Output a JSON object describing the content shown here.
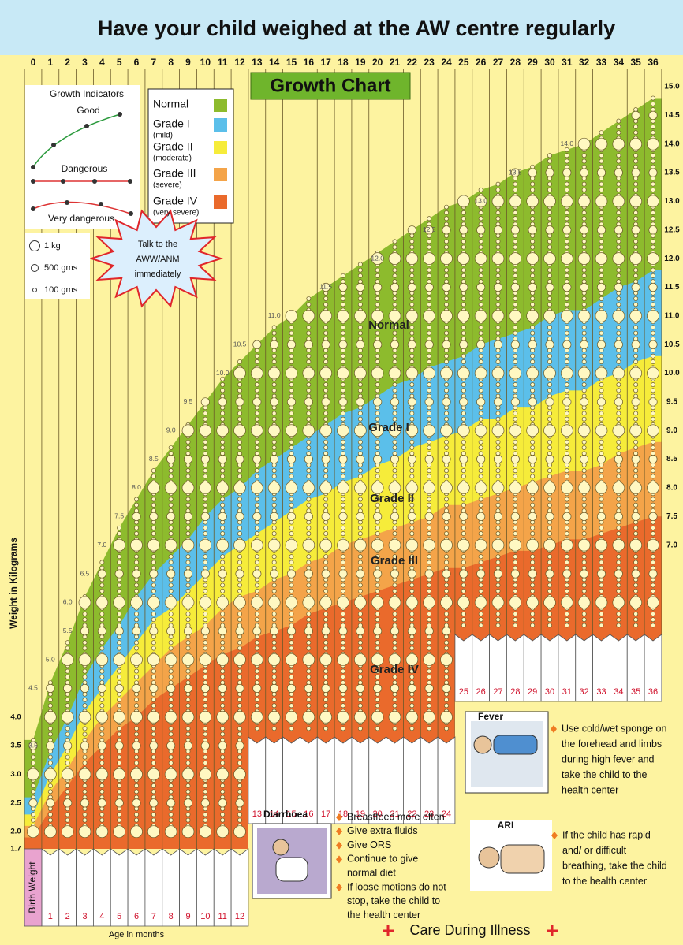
{
  "header": {
    "title": "Have your child weighed at the AW centre regularly"
  },
  "chart_data": {
    "type": "band",
    "title": "Growth Chart",
    "y_label": "Weight in Kilograms",
    "x_label": "Age in months",
    "birth_weight_label": "Birth Weight",
    "x": [
      0,
      1,
      2,
      3,
      4,
      5,
      6,
      7,
      8,
      9,
      10,
      11,
      12,
      13,
      14,
      15,
      16,
      17,
      18,
      19,
      20,
      21,
      22,
      23,
      24,
      25,
      26,
      27,
      28,
      29,
      30,
      31,
      32,
      33,
      34,
      35,
      36
    ],
    "xlim": [
      0,
      36
    ],
    "xticks": [
      0,
      1,
      2,
      3,
      4,
      5,
      6,
      7,
      8,
      9,
      10,
      11,
      12,
      13,
      14,
      15,
      16,
      17,
      18,
      19,
      20,
      21,
      22,
      23,
      24,
      25,
      26,
      27,
      28,
      29,
      30,
      31,
      32,
      33,
      34,
      35,
      36
    ],
    "ylim": [
      1.7,
      15
    ],
    "yticks": [
      1.7,
      {
        "value": 2,
        "label": "2.0"
      },
      2.5,
      {
        "value": 3,
        "label": "3.0"
      },
      3.5,
      {
        "value": 4,
        "label": "4.0"
      }
    ],
    "y2lim": [
      1.7,
      15
    ],
    "y2ticks": [
      {
        "value": 7,
        "label": "7.0"
      },
      7.5,
      {
        "value": 8,
        "label": "8.0"
      },
      8.5,
      {
        "value": 9,
        "label": "9.0"
      },
      9.5,
      {
        "value": 10,
        "label": "10.0"
      },
      10.5,
      {
        "value": 11,
        "label": "11.0"
      },
      11.5,
      {
        "value": 12,
        "label": "12.0"
      },
      12.5,
      {
        "value": 13,
        "label": "13.0"
      },
      13.5,
      {
        "value": 14,
        "label": "14.0"
      },
      14.5,
      {
        "value": 15,
        "label": "15.0"
      }
    ],
    "series": [
      {
        "name": "Normal",
        "color": "#8dbb2d",
        "values": [
          3.6,
          4.6,
          5.3,
          6.1,
          6.7,
          7.3,
          7.8,
          8.3,
          8.7,
          9.1,
          9.5,
          9.9,
          10.2,
          10.5,
          10.8,
          11.0,
          11.3,
          11.5,
          11.7,
          11.9,
          12.1,
          12.3,
          12.5,
          12.7,
          12.9,
          13.0,
          13.2,
          13.3,
          13.5,
          13.6,
          13.8,
          13.9,
          14.0,
          14.2,
          14.4,
          14.6,
          14.8
        ]
      },
      {
        "name": "Grade I",
        "note": "(mild)",
        "color": "#5bbfea",
        "values": [
          2.6,
          3.4,
          4.0,
          4.7,
          5.2,
          5.6,
          6.1,
          6.5,
          6.8,
          7.1,
          7.5,
          7.8,
          8.0,
          8.3,
          8.5,
          8.7,
          8.9,
          9.1,
          9.3,
          9.4,
          9.6,
          9.8,
          9.9,
          10.1,
          10.2,
          10.3,
          10.5,
          10.6,
          10.7,
          10.8,
          11.0,
          11.1,
          11.1,
          11.3,
          11.5,
          11.6,
          11.8
        ]
      },
      {
        "name": "Grade II",
        "note": "(moderate)",
        "color": "#f6ec3a",
        "values": [
          2.3,
          3.0,
          3.5,
          4.1,
          4.5,
          4.9,
          5.3,
          5.7,
          5.9,
          6.2,
          6.5,
          6.8,
          7.0,
          7.2,
          7.4,
          7.6,
          7.8,
          7.9,
          8.1,
          8.2,
          8.4,
          8.5,
          8.7,
          8.8,
          8.9,
          9.0,
          9.2,
          9.2,
          9.4,
          9.4,
          9.6,
          9.7,
          9.7,
          9.9,
          10.0,
          10.2,
          10.3
        ]
      },
      {
        "name": "Grade III",
        "note": "(severe)",
        "color": "#f4a449",
        "values": [
          2.1,
          2.7,
          3.1,
          3.6,
          4.0,
          4.3,
          4.6,
          4.9,
          5.2,
          5.4,
          5.6,
          5.9,
          6.1,
          6.2,
          6.4,
          6.5,
          6.7,
          6.8,
          7.0,
          7.1,
          7.2,
          7.3,
          7.4,
          7.5,
          7.7,
          7.7,
          7.8,
          7.9,
          8.0,
          8.1,
          8.2,
          8.3,
          8.3,
          8.4,
          8.6,
          8.7,
          8.8
        ]
      },
      {
        "name": "Grade IV",
        "note": "(very severe)",
        "color": "#ea6a2c",
        "values": [
          1.9,
          2.4,
          2.8,
          3.2,
          3.5,
          3.8,
          4.0,
          4.3,
          4.5,
          4.7,
          4.9,
          5.1,
          5.2,
          5.4,
          5.5,
          5.6,
          5.8,
          5.9,
          6.0,
          6.1,
          6.2,
          6.3,
          6.4,
          6.5,
          6.6,
          6.6,
          6.7,
          6.8,
          6.9,
          6.9,
          7.0,
          7.1,
          7.1,
          7.2,
          7.3,
          7.4,
          7.5
        ]
      }
    ],
    "curve_labels": [
      {
        "x": 0,
        "value": 3.5
      },
      {
        "x": 0,
        "value": 4.5
      },
      {
        "x": 1,
        "value": 5,
        "label": "5.0"
      },
      {
        "x": 2,
        "value": 5.5
      },
      {
        "x": 2,
        "value": 6,
        "label": "6.0"
      },
      {
        "x": 3,
        "value": 6.5
      },
      {
        "x": 4,
        "value": 7,
        "label": "7.0"
      },
      {
        "x": 5,
        "value": 7.5
      },
      {
        "x": 6,
        "value": 8,
        "label": "8.0"
      },
      {
        "x": 7,
        "value": 8.5
      },
      {
        "x": 8,
        "value": 9,
        "label": "9.0"
      },
      {
        "x": 9,
        "value": 9.5
      },
      {
        "x": 11,
        "value": 10,
        "label": "10.0"
      },
      {
        "x": 12,
        "value": 10.5
      },
      {
        "x": 14,
        "value": 11,
        "label": "11.0"
      },
      {
        "x": 17,
        "value": 11.5
      },
      {
        "x": 20,
        "value": 12,
        "label": "12.0"
      },
      {
        "x": 23,
        "value": 12.5
      },
      {
        "x": 26,
        "value": 13,
        "label": "13.0"
      },
      {
        "x": 28,
        "value": 13.5
      },
      {
        "x": 31,
        "value": 14,
        "label": "14.0"
      }
    ]
  },
  "growth_indicators": {
    "title": "Growth Indicators",
    "labels": [
      "Good",
      "Dangerous",
      "Very dangerous"
    ]
  },
  "alert": {
    "lines": [
      "Talk to the",
      "AWW/ANM",
      "immediately"
    ]
  },
  "weight_key": {
    "items": [
      "1 kg",
      "500 gms",
      "100 gms"
    ]
  },
  "care": {
    "title": "Care During Illness",
    "sections": [
      {
        "heading": "Diarrhoea",
        "bullets": [
          [
            "Breastfeed more often"
          ],
          [
            "Give extra fluids"
          ],
          [
            "Give ORS"
          ],
          [
            "Continue to give",
            "normal diet"
          ],
          [
            "If loose motions do not",
            "stop, take the child to",
            "the health center"
          ]
        ]
      },
      {
        "heading": "Fever",
        "bullets": [
          [
            "Use cold/wet sponge on",
            "the forehead and limbs",
            "during high fever and",
            "take the child to the",
            "health center"
          ]
        ]
      },
      {
        "heading": "ARI",
        "bullets": [
          [
            "If the child has rapid",
            "and/ or difficult",
            "breathing, take the child",
            "to the health center"
          ]
        ]
      }
    ]
  }
}
